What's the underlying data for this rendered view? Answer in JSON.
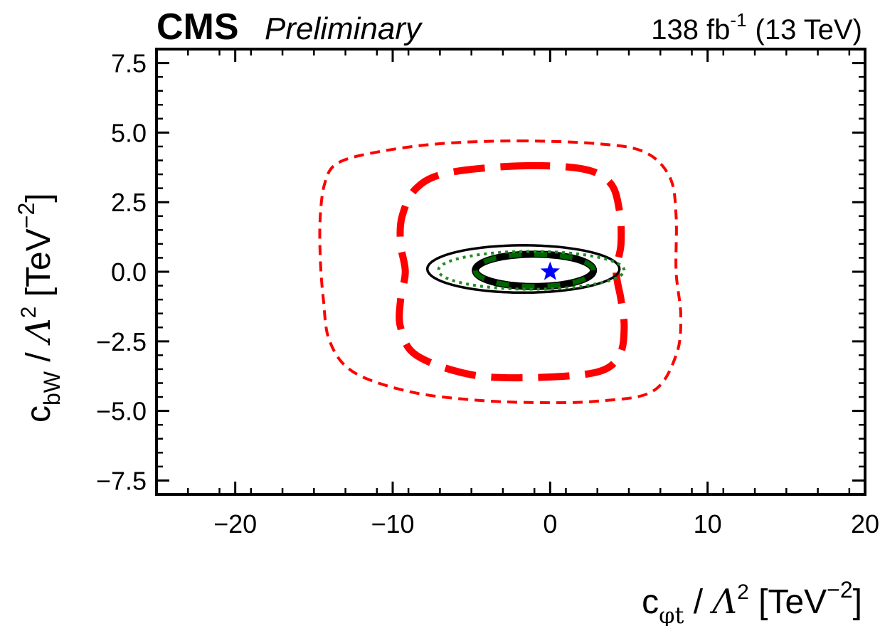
{
  "header": {
    "experiment": "CMS",
    "status": "Preliminary",
    "lumi_value": "138 fb",
    "lumi_exp": "-1",
    "energy": "(13 TeV)"
  },
  "chart_data": {
    "type": "line",
    "xlim": [
      -25,
      20
    ],
    "ylim": [
      -8,
      8
    ],
    "x_ticks": [
      -20,
      -10,
      0,
      10,
      20
    ],
    "x_tick_labels": [
      "−20",
      "−10",
      "0",
      "10",
      "20"
    ],
    "y_ticks": [
      -7.5,
      -5.0,
      -2.5,
      0.0,
      2.5,
      5.0,
      7.5
    ],
    "y_tick_labels": [
      "−7.5",
      "−5.0",
      "−2.5",
      "0.0",
      "2.5",
      "5.0",
      "7.5"
    ],
    "xlabel": {
      "sym": "c",
      "sub": "φt",
      "sep": " / ",
      "lambda": "Λ",
      "pow": "2",
      "unit": " [TeV",
      "unit_exp": "−2",
      "close": "]"
    },
    "ylabel": {
      "sym": "c",
      "sub": "bW",
      "sep": " / ",
      "lambda": "Λ",
      "pow": "2",
      "unit": " [TeV",
      "unit_exp": "−2",
      "close": "]"
    },
    "best_fit": {
      "x": 0.0,
      "y": 0.0,
      "color": "#0000ff",
      "marker": "star"
    },
    "series": [
      {
        "name": "outer-dashed-thin",
        "color": "#ff0000",
        "style": "dashed-thin",
        "points": [
          [
            -2,
            4.7
          ],
          [
            3,
            4.6
          ],
          [
            6,
            4.3
          ],
          [
            7.6,
            3.4
          ],
          [
            8.0,
            2.0
          ],
          [
            8.0,
            0
          ],
          [
            8.3,
            -1.6
          ],
          [
            8.0,
            -3.0
          ],
          [
            6.5,
            -4.3
          ],
          [
            3,
            -4.65
          ],
          [
            -1,
            -4.7
          ],
          [
            -5,
            -4.6
          ],
          [
            -9,
            -4.3
          ],
          [
            -12.5,
            -3.6
          ],
          [
            -14.0,
            -2.5
          ],
          [
            -14.4,
            -1.0
          ],
          [
            -14.6,
            0.5
          ],
          [
            -14.6,
            2.0
          ],
          [
            -14.3,
            3.2
          ],
          [
            -13.5,
            3.9
          ],
          [
            -11,
            4.3
          ],
          [
            -7,
            4.6
          ],
          [
            -2,
            4.7
          ]
        ]
      },
      {
        "name": "middle-dashed-thick",
        "color": "#ff0000",
        "style": "dashed-thick",
        "points": [
          [
            -2,
            3.8
          ],
          [
            2,
            3.7
          ],
          [
            3.8,
            3.2
          ],
          [
            4.4,
            2.2
          ],
          [
            4.5,
            1.0
          ],
          [
            4.2,
            0.0
          ],
          [
            4.5,
            -1.0
          ],
          [
            4.7,
            -2.0
          ],
          [
            4.4,
            -3.0
          ],
          [
            3,
            -3.6
          ],
          [
            -1,
            -3.8
          ],
          [
            -5,
            -3.7
          ],
          [
            -8.5,
            -3.0
          ],
          [
            -9.5,
            -2.0
          ],
          [
            -9.5,
            -1.0
          ],
          [
            -9.2,
            0.0
          ],
          [
            -9.5,
            1.0
          ],
          [
            -9.4,
            2.0
          ],
          [
            -8.5,
            3.0
          ],
          [
            -6.5,
            3.55
          ],
          [
            -2,
            3.8
          ]
        ]
      },
      {
        "name": "black-outer-ellipse",
        "color": "#000000",
        "style": "solid-thin",
        "ellipse": {
          "cx": -1.7,
          "cy": 0.1,
          "rx": 6.1,
          "ry": 0.85
        }
      },
      {
        "name": "black-inner-ellipse",
        "color": "#000000",
        "style": "solid-thick",
        "ellipse": {
          "cx": -1.0,
          "cy": 0.05,
          "rx": 3.75,
          "ry": 0.58
        }
      },
      {
        "name": "green-inner-dashed",
        "color": "#006400",
        "style": "dashed-medium",
        "ellipse": {
          "cx": -1.0,
          "cy": 0.05,
          "rx": 3.75,
          "ry": 0.58
        }
      },
      {
        "name": "green-outer-dotted",
        "color": "#228b22",
        "style": "dotted",
        "ellipse": {
          "cx": -1.2,
          "cy": 0.05,
          "rx": 5.9,
          "ry": 0.68
        }
      }
    ]
  }
}
